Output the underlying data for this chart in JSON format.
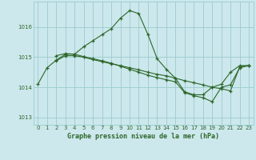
{
  "title": "Graphe pression niveau de la mer (hPa)",
  "background_color": "#cce8ec",
  "grid_color": "#99cccc",
  "line_color": "#2d6629",
  "ylim": [
    1012.75,
    1016.85
  ],
  "yticks": [
    1013,
    1014,
    1015,
    1016
  ],
  "xlim": [
    -0.5,
    23.5
  ],
  "xticks": [
    0,
    1,
    2,
    3,
    4,
    5,
    6,
    7,
    8,
    9,
    10,
    11,
    12,
    13,
    14,
    15,
    16,
    17,
    18,
    19,
    20,
    21,
    22,
    23
  ],
  "series": {
    "line1": {
      "x": [
        0,
        1,
        2,
        3,
        4,
        5,
        6,
        7,
        8,
        9,
        10,
        11,
        12,
        13,
        14,
        15,
        16,
        17,
        18,
        19,
        20,
        21,
        22,
        23
      ],
      "y": [
        1014.1,
        1014.65,
        1014.9,
        1015.1,
        1015.1,
        1015.35,
        1015.55,
        1015.75,
        1015.95,
        1016.3,
        1016.55,
        1016.45,
        1015.75,
        1014.95,
        1014.6,
        1014.3,
        1013.85,
        1013.75,
        1013.75,
        1014.0,
        1014.1,
        1014.5,
        1014.72,
        1014.72
      ]
    },
    "line2": {
      "x": [
        2,
        3,
        4,
        5,
        6,
        7,
        8,
        9,
        10,
        11,
        12,
        13,
        14,
        15,
        16,
        17,
        18,
        19,
        20,
        21,
        22,
        23
      ],
      "y": [
        1014.88,
        1015.05,
        1015.05,
        1015.0,
        1014.92,
        1014.85,
        1014.78,
        1014.72,
        1014.65,
        1014.58,
        1014.5,
        1014.43,
        1014.38,
        1014.3,
        1014.22,
        1014.15,
        1014.08,
        1014.0,
        1013.95,
        1013.88,
        1014.68,
        1014.72
      ]
    },
    "line3": {
      "x": [
        2,
        3,
        4,
        5,
        6,
        7,
        8,
        9,
        10,
        11,
        12,
        13,
        14,
        15,
        16,
        17,
        18,
        19,
        20,
        21,
        22,
        23
      ],
      "y": [
        1015.05,
        1015.12,
        1015.1,
        1015.02,
        1014.95,
        1014.88,
        1014.8,
        1014.7,
        1014.6,
        1014.5,
        1014.4,
        1014.32,
        1014.25,
        1014.18,
        1013.82,
        1013.72,
        1013.65,
        1013.52,
        1014.0,
        1014.08,
        1014.65,
        1014.72
      ]
    }
  }
}
